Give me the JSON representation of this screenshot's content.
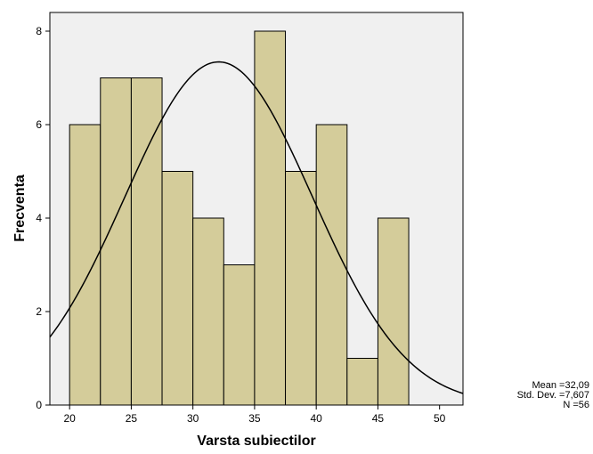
{
  "chart_data": {
    "type": "bar",
    "subtype": "histogram",
    "xlabel": "Varsta subiectilor",
    "ylabel": "Frecventa",
    "xlim": [
      18.4,
      51.9
    ],
    "ylim": [
      0,
      8.4
    ],
    "xticks": [
      20,
      25,
      30,
      35,
      40,
      45,
      50
    ],
    "yticks": [
      0,
      2,
      4,
      6,
      8
    ],
    "bin_width": 2.5,
    "bins": [
      {
        "start": 20,
        "end": 22.5,
        "value": 6
      },
      {
        "start": 22.5,
        "end": 25,
        "value": 7
      },
      {
        "start": 25,
        "end": 27.5,
        "value": 7
      },
      {
        "start": 27.5,
        "end": 30,
        "value": 5
      },
      {
        "start": 30,
        "end": 32.5,
        "value": 4
      },
      {
        "start": 32.5,
        "end": 35,
        "value": 3
      },
      {
        "start": 35,
        "end": 37.5,
        "value": 8
      },
      {
        "start": 37.5,
        "end": 40,
        "value": 5
      },
      {
        "start": 40,
        "end": 42.5,
        "value": 6
      },
      {
        "start": 42.5,
        "end": 45,
        "value": 1
      },
      {
        "start": 45,
        "end": 47.5,
        "value": 4
      }
    ],
    "normal_curve": {
      "mean": 32.09,
      "std_dev": 7.607,
      "n": 56
    },
    "grid": false,
    "colors": {
      "bar_fill": "#d4cc9a",
      "plot_background": "#f0f0f0",
      "curve": "#000000"
    }
  },
  "stats": {
    "mean": "Mean =32,09",
    "std_dev": "Std. Dev. =7,607",
    "n": "N =56"
  }
}
